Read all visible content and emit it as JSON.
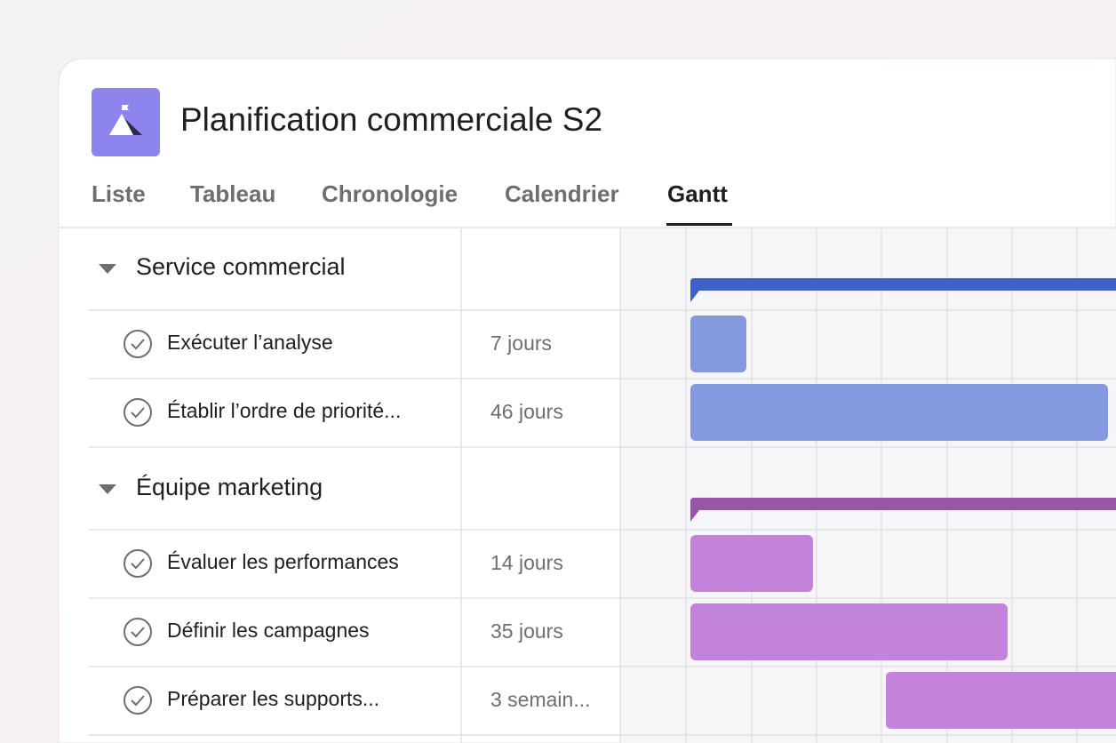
{
  "header": {
    "title": "Planification commerciale S2"
  },
  "tabs": [
    "Liste",
    "Tableau",
    "Chronologie",
    "Calendrier",
    "Gantt"
  ],
  "sections": [
    {
      "name": "Service commercial",
      "tasks": [
        {
          "name": "Exécuter l’analyse",
          "duration": "7 jours"
        },
        {
          "name": "Établir l’ordre de priorité...",
          "duration": "46 jours"
        }
      ]
    },
    {
      "name": "Équipe marketing",
      "tasks": [
        {
          "name": "Évaluer les performances",
          "duration": "14 jours"
        },
        {
          "name": "Définir les campagnes",
          "duration": "35 jours"
        },
        {
          "name": "Préparer les supports...",
          "duration": "3 semain..."
        }
      ]
    }
  ]
}
